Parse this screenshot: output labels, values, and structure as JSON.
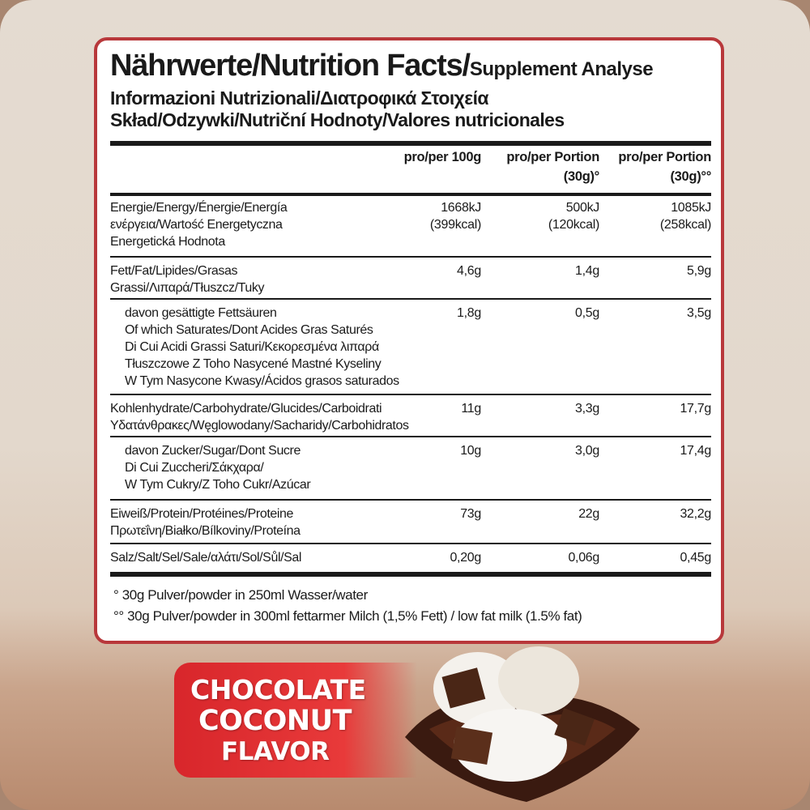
{
  "title": {
    "line1_main": "Nährwerte/Nutrition Facts/",
    "line1_small": "Supplement Analyse",
    "line2": "Informazioni Nutrizionali/Διατροφικά Στοιχεία",
    "line3": "Skład/Odzywki/Nutriční Hodnoty/Valores nutricionales"
  },
  "columns": [
    {
      "line1": "pro/per 100g",
      "line2": ""
    },
    {
      "line1": "pro/per Portion",
      "line2": "(30g)°"
    },
    {
      "line1": "pro/per Portion",
      "line2": "(30g)°°"
    }
  ],
  "rows": [
    {
      "label": [
        "Energie/Energy/Énergie/Energía",
        "ενέργεια/Wartość Energetyczna",
        "Energetická Hodnota"
      ],
      "values": [
        [
          "1668kJ",
          "(399kcal)"
        ],
        [
          "500kJ",
          "(120kcal)"
        ],
        [
          "1085kJ",
          "(258kcal)"
        ]
      ]
    },
    {
      "label": [
        "Fett/Fat/Lipides/Grasas",
        "Grassi/Λιπαρά/Tłuszcz/Tuky"
      ],
      "values": [
        [
          "4,6g"
        ],
        [
          "1,4g"
        ],
        [
          "5,9g"
        ]
      ]
    },
    {
      "label": [
        "davon gesättigte Fettsäuren",
        "Of which Saturates/Dont Acides Gras Saturés",
        "Di Cui Acidi Grassi Saturi/Κεκορεσμένα λιπαρά",
        "Tłuszczowe Z Toho Nasycené Mastné Kyseliny",
        "W Tym Nasycone Kwasy/Ácidos grasos saturados"
      ],
      "values": [
        [
          "1,8g"
        ],
        [
          "0,5g"
        ],
        [
          "3,5g"
        ]
      ]
    },
    {
      "label": [
        "Kohlenhydrate/Carbohydrate/Glucides/Carboidrati",
        "Υδατάνθρακες/Węglowodany/Sacharidy/Carbohidratos"
      ],
      "values": [
        [
          "11g"
        ],
        [
          "3,3g"
        ],
        [
          "17,7g"
        ]
      ]
    },
    {
      "label": [
        "davon Zucker/Sugar/Dont Sucre",
        "Di Cui Zuccheri/Σάκχαρα/",
        "W Tym Cukry/Z Toho Cukr/Azúcar"
      ],
      "values": [
        [
          "10g"
        ],
        [
          "3,0g"
        ],
        [
          "17,4g"
        ]
      ]
    },
    {
      "label": [
        "Eiweiß/Protein/Protéines/Proteine",
        "Πρωτεΐνη/Białko/Bílkoviny/Proteína"
      ],
      "values": [
        [
          "73g"
        ],
        [
          "22g"
        ],
        [
          "32,2g"
        ]
      ]
    },
    {
      "label": [
        "Salz/Salt/Sel/Sale/αλάτι/Sol/Sůl/Sal"
      ],
      "values": [
        [
          "0,20g"
        ],
        [
          "0,06g"
        ],
        [
          "0,45g"
        ]
      ]
    }
  ],
  "footnotes": [
    "°  30g Pulver/powder in 250ml Wasser/water",
    "°° 30g Pulver/powder in 300ml fettarmer Milch (1,5% Fett)  /  low fat milk (1.5% fat)"
  ],
  "banner": {
    "line1": "CHOCOLATE",
    "line2": "COCONUT",
    "line3": "FLAVOR",
    "color": "#e03033"
  },
  "colors": {
    "card_border": "#b8383b",
    "text": "#1a1a1a"
  }
}
